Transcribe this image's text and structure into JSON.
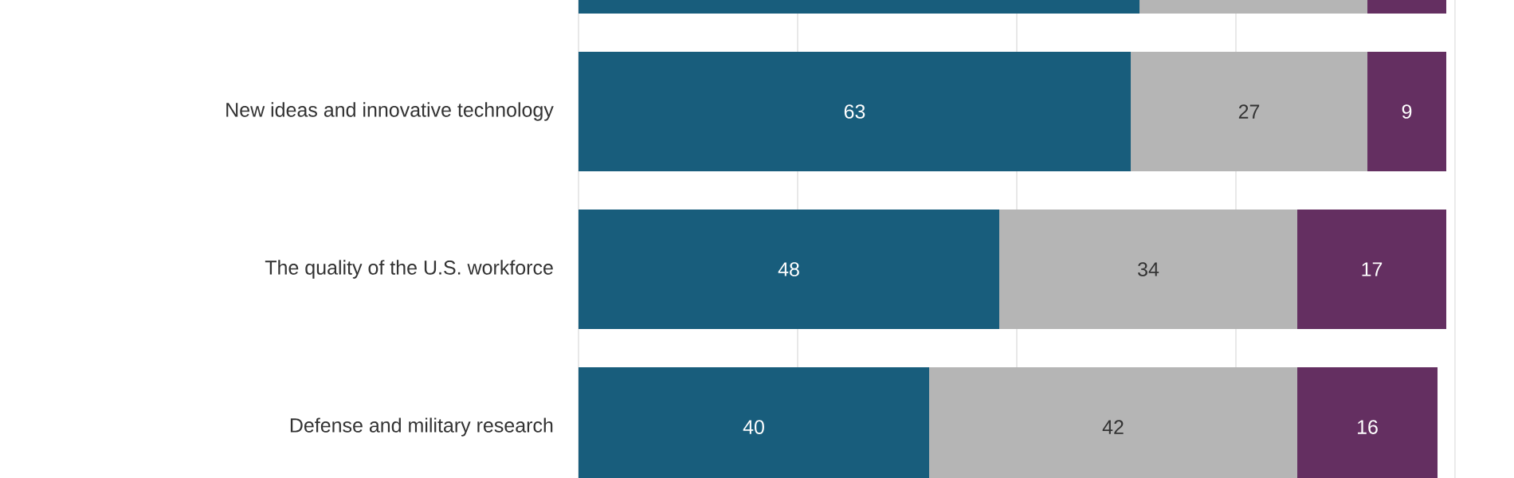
{
  "chart_data": {
    "type": "bar",
    "orientation": "horizontal",
    "stacked": true,
    "categories": [
      null,
      "New ideas and innovative technology",
      "The quality of the U.S. workforce",
      "Defense and military research"
    ],
    "series": [
      {
        "color": "#185d7c",
        "values": [
          64,
          63,
          48,
          40
        ],
        "value_labels": [
          null,
          "63",
          "48",
          "40"
        ]
      },
      {
        "color": "#b5b5b5",
        "values": [
          26,
          27,
          34,
          42
        ],
        "value_labels": [
          null,
          "27",
          "34",
          "42"
        ]
      },
      {
        "color": "#642f61",
        "values": [
          9,
          9,
          17,
          16
        ],
        "value_labels": [
          null,
          "9",
          "17",
          "16"
        ]
      }
    ],
    "xlim": [
      0,
      100
    ],
    "xticks": [
      {
        "value": 0,
        "label": null
      },
      {
        "value": 25,
        "label": null
      },
      {
        "value": 50,
        "label": null
      },
      {
        "value": 75,
        "label": null
      },
      {
        "value": 100,
        "label": null
      }
    ],
    "grid": "x",
    "tick_labels": "y"
  }
}
